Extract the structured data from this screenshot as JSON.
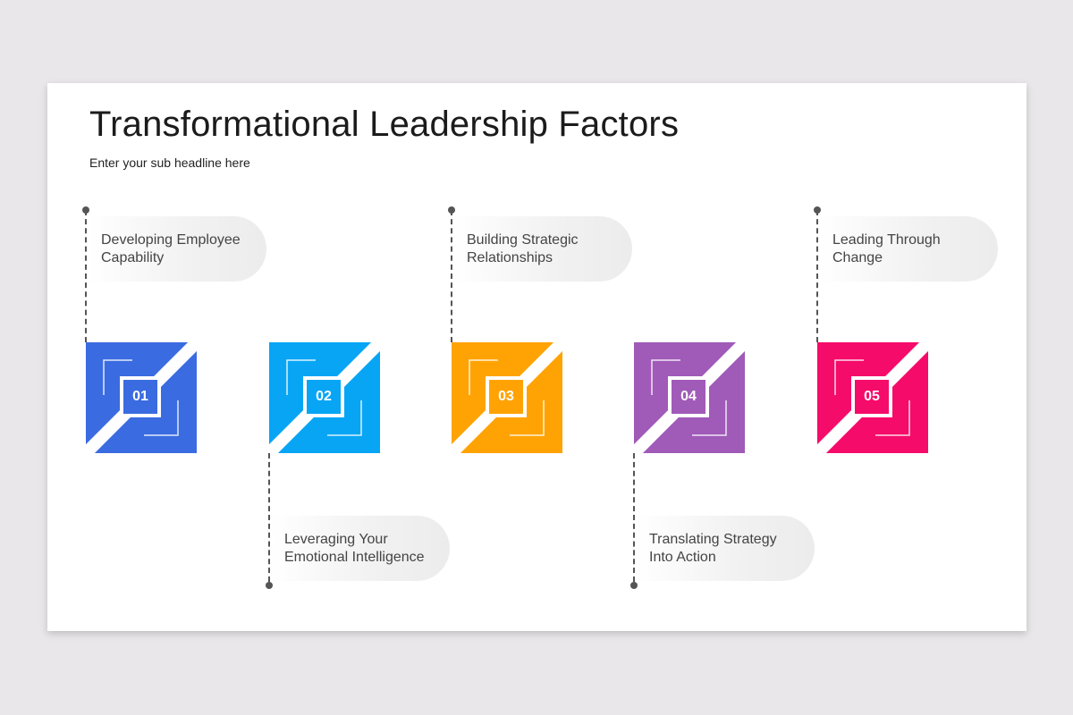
{
  "slide": {
    "title": "Transformational Leadership Factors",
    "subtitle": "Enter your sub headline here"
  },
  "steps": [
    {
      "number": "01",
      "line1": "Developing Employee",
      "line2": "Capability",
      "color": "#3a6be0",
      "position": "top"
    },
    {
      "number": "02",
      "line1": "Leveraging Your",
      "line2": "Emotional Intelligence",
      "color": "#08a5f5",
      "position": "bottom"
    },
    {
      "number": "03",
      "line1": "Building Strategic",
      "line2": "Relationships",
      "color": "#ffa305",
      "position": "top"
    },
    {
      "number": "04",
      "line1": "Translating Strategy",
      "line2": "Into Action",
      "color": "#a05ab8",
      "position": "bottom"
    },
    {
      "number": "05",
      "line1": "Leading Through",
      "line2": "Change",
      "color": "#f50b6a",
      "position": "top"
    }
  ]
}
